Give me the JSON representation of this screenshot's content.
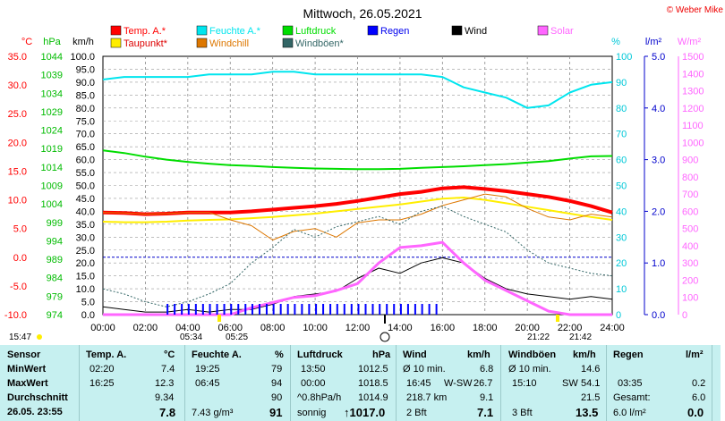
{
  "title": "Mittwoch, 26.05.2021",
  "copyright": "© Weber Mike",
  "legend": [
    {
      "label": "Temp. A.*",
      "color": "#ff0000"
    },
    {
      "label": "Feuchte A.*",
      "color": "#00e5ee"
    },
    {
      "label": "Luftdruck",
      "color": "#00dd00"
    },
    {
      "label": "Regen",
      "color": "#0000ff"
    },
    {
      "label": "Wind",
      "color": "#000000"
    },
    {
      "label": "Solar",
      "color": "#ff66ff"
    },
    {
      "label": "Taupunkt*",
      "color": "#ffee00"
    },
    {
      "label": "Windchill",
      "color": "#dd7700"
    },
    {
      "label": "Windböen*",
      "color": "#336666"
    }
  ],
  "axes": {
    "temp": {
      "unit": "°C",
      "ticks": [
        "35.0",
        "30.0",
        "25.0",
        "20.0",
        "15.0",
        "10.0",
        "5.0",
        "0.0",
        "-5.0",
        "-10.0"
      ],
      "color": "#ff0000"
    },
    "pressure": {
      "unit": "hPa",
      "ticks": [
        "1044",
        "1039",
        "1034",
        "1029",
        "1024",
        "1019",
        "1014",
        "1009",
        "1004",
        "999",
        "994",
        "989",
        "984",
        "979",
        "974"
      ],
      "color": "#00bb00"
    },
    "wind": {
      "unit": "km/h",
      "ticks": [
        "100.0",
        "95.0",
        "90.0",
        "85.0",
        "80.0",
        "75.0",
        "70.0",
        "65.0",
        "60.0",
        "55.0",
        "50.0",
        "45.0",
        "40.0",
        "35.0",
        "30.0",
        "25.0",
        "20.0",
        "15.0",
        "10.0",
        "5.0",
        "0.0"
      ],
      "color": "#000000"
    },
    "humidity": {
      "unit": "%",
      "ticks": [
        "100",
        "90",
        "80",
        "70",
        "60",
        "50",
        "40",
        "30",
        "20",
        "10",
        "0"
      ],
      "color": "#00c8d8"
    },
    "rain": {
      "unit": "l/m²",
      "ticks": [
        "5.0",
        "4.0",
        "3.0",
        "2.0",
        "1.0",
        "0.0"
      ],
      "color": "#0000cc"
    },
    "solar": {
      "unit": "W/m²",
      "ticks": [
        "1500",
        "1400",
        "1300",
        "1200",
        "1100",
        "1000",
        "900",
        "800",
        "700",
        "600",
        "500",
        "400",
        "300",
        "200",
        "100",
        "0"
      ],
      "color": "#ff66ff"
    },
    "x_ticks": [
      "00:00",
      "02:00",
      "04:00",
      "06:00",
      "08:00",
      "10:00",
      "12:00",
      "14:00",
      "16:00",
      "18:00",
      "20:00",
      "22:00",
      "24:00"
    ]
  },
  "sun": {
    "sunrise": "05:34",
    "sunset": "21:22",
    "moonrise": "05:25",
    "moonset": "21:42",
    "now": "15:47"
  },
  "chart_data": {
    "type": "line",
    "x_unit": "hour of day",
    "x": [
      0,
      1,
      2,
      3,
      4,
      5,
      6,
      7,
      8,
      9,
      10,
      11,
      12,
      13,
      14,
      15,
      16,
      17,
      18,
      19,
      20,
      21,
      22,
      23,
      24
    ],
    "series": [
      {
        "name": "Temp. A.*",
        "axis": "temp",
        "values": [
          7.8,
          7.7,
          7.5,
          7.6,
          7.8,
          7.8,
          7.8,
          8.0,
          8.3,
          8.6,
          8.9,
          9.3,
          9.8,
          10.4,
          11.0,
          11.4,
          12.0,
          12.2,
          11.9,
          11.5,
          11.0,
          10.5,
          9.8,
          8.9,
          7.8
        ]
      },
      {
        "name": "Taupunkt*",
        "axis": "temp",
        "values": [
          6.2,
          6.1,
          6.1,
          6.2,
          6.4,
          6.5,
          6.6,
          6.8,
          7.0,
          7.3,
          7.6,
          8.0,
          8.4,
          8.8,
          9.2,
          9.7,
          10.2,
          10.4,
          10.0,
          9.4,
          8.8,
          8.2,
          7.6,
          7.0,
          6.5
        ]
      },
      {
        "name": "Windchill",
        "axis": "temp",
        "values": [
          7.8,
          7.7,
          7.5,
          7.6,
          7.8,
          7.8,
          6.5,
          5.5,
          3.0,
          4.5,
          5.0,
          3.5,
          6.0,
          6.5,
          6.5,
          7.5,
          9.0,
          10.0,
          11.0,
          10.5,
          8.5,
          7.0,
          6.5,
          7.5,
          7.0
        ]
      },
      {
        "name": "Feuchte A.*",
        "axis": "humidity",
        "values": [
          91,
          92,
          92,
          92,
          92,
          93,
          93,
          93,
          94,
          94,
          93,
          93,
          93,
          93,
          93,
          93,
          92,
          88,
          86,
          84,
          80,
          81,
          86,
          89,
          90
        ]
      },
      {
        "name": "Luftdruck",
        "axis": "pressure",
        "values": [
          1018.5,
          1017.8,
          1016.8,
          1016.0,
          1015.4,
          1014.9,
          1014.5,
          1014.3,
          1014.0,
          1013.8,
          1013.6,
          1013.5,
          1013.4,
          1013.4,
          1013.5,
          1013.8,
          1014.0,
          1014.2,
          1014.5,
          1014.8,
          1015.2,
          1015.6,
          1016.3,
          1016.9,
          1017.0
        ]
      },
      {
        "name": "Wind",
        "axis": "wind",
        "values": [
          3,
          2,
          1,
          1,
          2,
          1,
          2,
          2,
          4,
          7,
          8,
          9,
          14,
          18,
          16,
          20,
          22,
          20,
          14,
          10,
          8,
          7,
          6,
          7,
          6
        ]
      },
      {
        "name": "Windböen*",
        "axis": "wind",
        "values": [
          10,
          8,
          5,
          3,
          5,
          8,
          12,
          20,
          26,
          33,
          30,
          34,
          36,
          38,
          35,
          40,
          42,
          38,
          35,
          32,
          25,
          20,
          18,
          16,
          15
        ]
      },
      {
        "name": "Solar",
        "axis": "solar",
        "values": [
          0,
          0,
          0,
          0,
          0,
          0,
          0,
          40,
          70,
          100,
          110,
          140,
          180,
          300,
          390,
          400,
          420,
          300,
          200,
          140,
          80,
          20,
          0,
          0,
          0
        ]
      },
      {
        "name": "Regen",
        "axis": "rain",
        "values": [
          0,
          0,
          0,
          0.1,
          0.1,
          0.1,
          0.1,
          0.1,
          0.1,
          0.1,
          0.1,
          0.1,
          0.1,
          0.1,
          0.1,
          0.1,
          0,
          0,
          0,
          0,
          0,
          0,
          0,
          0,
          0
        ]
      }
    ]
  },
  "stats": {
    "row_labels": [
      "Sensor",
      "MinWert",
      "MaxWert",
      "Durchschnitt",
      "26.05. 23:55"
    ],
    "temp": {
      "header": "Temp. A.",
      "unit": "°C",
      "min_time": "02:20",
      "min": "7.4",
      "max_time": "16:25",
      "max": "12.3",
      "avg": "9.34",
      "now": "7.8"
    },
    "hum": {
      "header": "Feuchte A.",
      "unit": "%",
      "min_time": "19:25",
      "min": "79",
      "max_time": "06:45",
      "max": "94",
      "avg": "90",
      "now_extra": "7.43 g/m³",
      "now": "91"
    },
    "pres": {
      "header": "Luftdruck",
      "unit": "hPa",
      "min_time": "13:50",
      "min": "1012.5",
      "max_time": "00:00",
      "max": "1018.5",
      "avg_label": "^0.8hPa/h",
      "avg": "1014.9",
      "now_label": "sonnig",
      "now": "↑1017.0"
    },
    "wind": {
      "header": "Wind",
      "unit": "km/h",
      "min_label": "Ø 10 min.",
      "min": "6.8",
      "max_time": "16:45",
      "max_dir": "W-SW",
      "max": "26.7",
      "avg_label": "218.7 km",
      "avg": "9.1",
      "now_label": "2 Bft",
      "now": "7.1"
    },
    "gust": {
      "header": "Windböen",
      "unit": "km/h",
      "min_label": "Ø 10 min.",
      "min": "14.6",
      "max_time": "15:10",
      "max_dir": "SW",
      "max": "54.1",
      "avg": "21.5",
      "now_label": "3 Bft",
      "now": "13.5"
    },
    "rain": {
      "header": "Regen",
      "unit": "l/m²",
      "max_time": "03:35",
      "max": "0.2",
      "avg_label": "Gesamt:",
      "avg": "6.0",
      "now_label": "6.0 l/m²",
      "now": "0.0"
    }
  }
}
